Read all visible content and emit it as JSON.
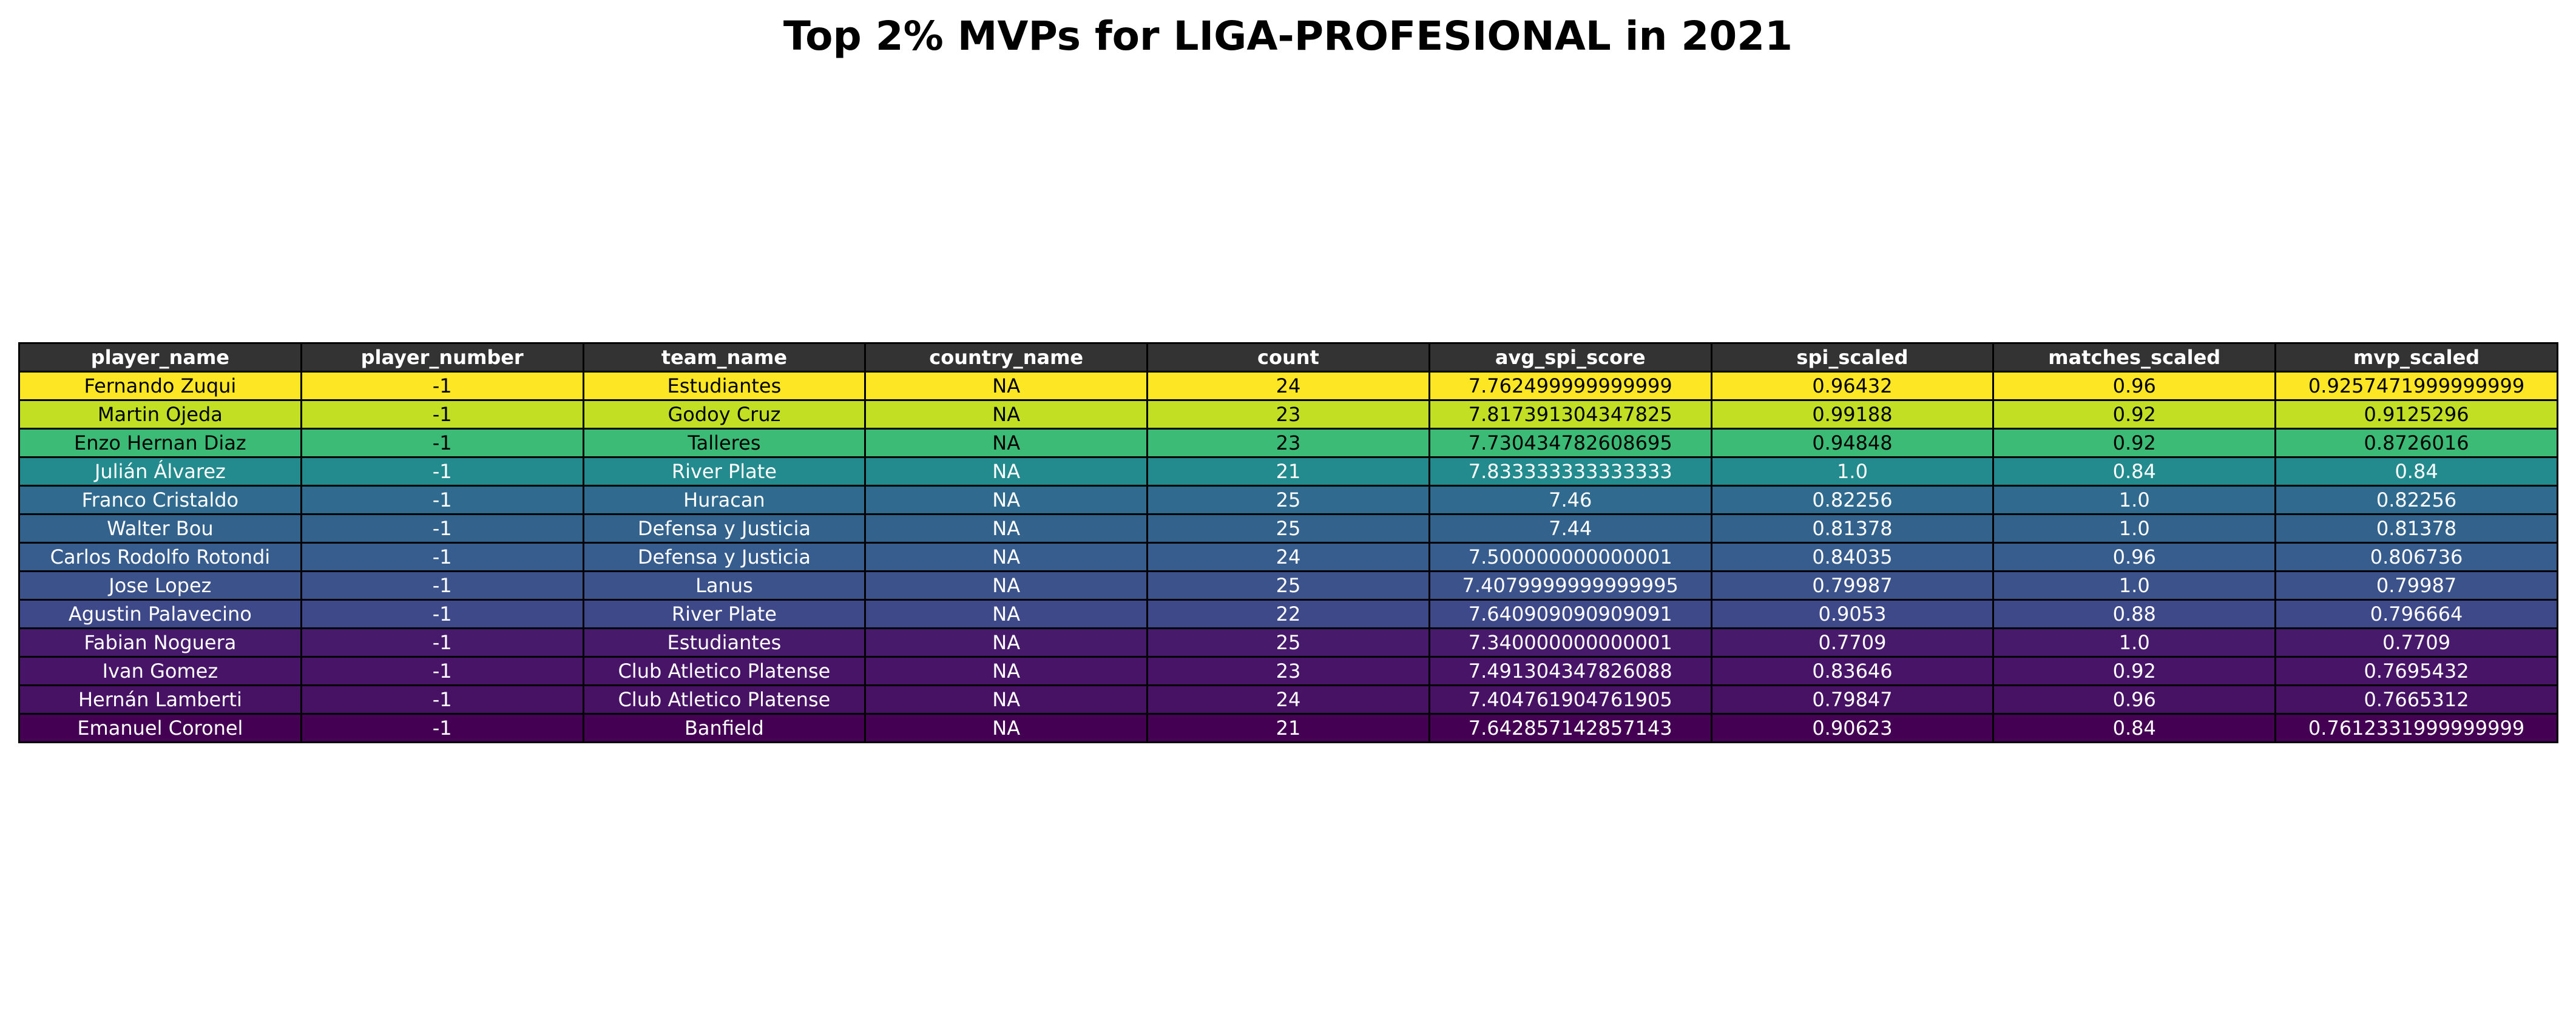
{
  "chart_data": {
    "type": "table",
    "title": "Top 2% MVPs for LIGA-PROFESIONAL in 2021",
    "header_color": "#333333",
    "columns": [
      "player_name",
      "player_number",
      "team_name",
      "country_name",
      "count",
      "avg_spi_score",
      "spi_scaled",
      "matches_scaled",
      "mvp_scaled"
    ],
    "rows": [
      {
        "color": "#fde725",
        "text_color": "#000000",
        "cells": [
          "Fernando Zuqui",
          "-1",
          "Estudiantes",
          "NA",
          "24",
          "7.762499999999999",
          "0.96432",
          "0.96",
          "0.9257471999999999"
        ]
      },
      {
        "color": "#c2df23",
        "text_color": "#000000",
        "cells": [
          "Martin Ojeda",
          "-1",
          "Godoy Cruz",
          "NA",
          "23",
          "7.817391304347825",
          "0.99188",
          "0.92",
          "0.9125296"
        ]
      },
      {
        "color": "#3bbb75",
        "text_color": "#000000",
        "cells": [
          "Enzo Hernan Diaz",
          "-1",
          "Talleres",
          "NA",
          "23",
          "7.730434782608695",
          "0.94848",
          "0.92",
          "0.8726016"
        ]
      },
      {
        "color": "#238a8d",
        "text_color": "#ffffff",
        "cells": [
          "Julián Álvarez",
          "-1",
          "River Plate",
          "NA",
          "21",
          "7.833333333333333",
          "1.0",
          "0.84",
          "0.84"
        ]
      },
      {
        "color": "#306a8e",
        "text_color": "#ffffff",
        "cells": [
          "Franco Cristaldo",
          "-1",
          "Huracan",
          "NA",
          "25",
          "7.46",
          "0.82256",
          "1.0",
          "0.82256"
        ]
      },
      {
        "color": "#33638d",
        "text_color": "#ffffff",
        "cells": [
          "Walter Bou",
          "-1",
          "Defensa y Justicia",
          "NA",
          "25",
          "7.44",
          "0.81378",
          "1.0",
          "0.81378"
        ]
      },
      {
        "color": "#365d8d",
        "text_color": "#ffffff",
        "cells": [
          "Carlos Rodolfo Rotondi",
          "-1",
          "Defensa y Justicia",
          "NA",
          "24",
          "7.500000000000001",
          "0.84035",
          "0.96",
          "0.806736"
        ]
      },
      {
        "color": "#3b528b",
        "text_color": "#ffffff",
        "cells": [
          "Jose Lopez",
          "-1",
          "Lanus",
          "NA",
          "25",
          "7.4079999999999995",
          "0.79987",
          "1.0",
          "0.79987"
        ]
      },
      {
        "color": "#3e4989",
        "text_color": "#ffffff",
        "cells": [
          "Agustin Palavecino",
          "-1",
          "River Plate",
          "NA",
          "22",
          "7.640909090909091",
          "0.9053",
          "0.88",
          "0.796664"
        ]
      },
      {
        "color": "#481a6c",
        "text_color": "#ffffff",
        "cells": [
          "Fabian Noguera",
          "-1",
          "Estudiantes",
          "NA",
          "25",
          "7.340000000000001",
          "0.7709",
          "1.0",
          "0.7709"
        ]
      },
      {
        "color": "#481467",
        "text_color": "#ffffff",
        "cells": [
          "Ivan Gomez",
          "-1",
          "Club Atletico Platense",
          "NA",
          "23",
          "7.491304347826088",
          "0.83646",
          "0.92",
          "0.7695432"
        ]
      },
      {
        "color": "#471164",
        "text_color": "#ffffff",
        "cells": [
          "Hernán Lamberti",
          "-1",
          "Club Atletico Platense",
          "NA",
          "24",
          "7.404761904761905",
          "0.79847",
          "0.96",
          "0.7665312"
        ]
      },
      {
        "color": "#440154",
        "text_color": "#ffffff",
        "cells": [
          "Emanuel Coronel",
          "-1",
          "Banfield",
          "NA",
          "21",
          "7.642857142857143",
          "0.90623",
          "0.84",
          "0.7612331999999999"
        ]
      }
    ]
  }
}
